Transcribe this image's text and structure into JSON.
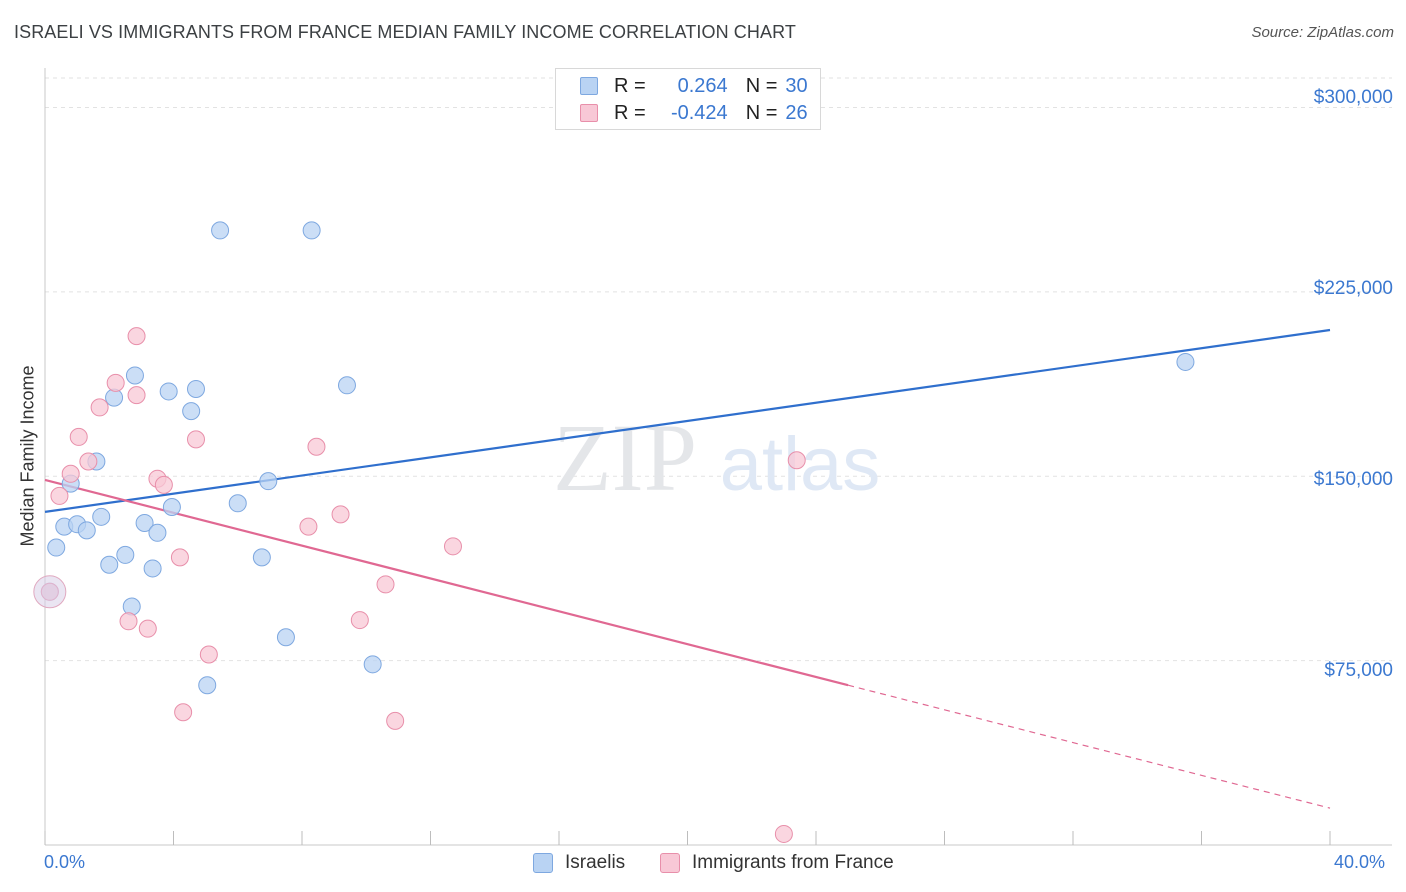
{
  "title": "ISRAELI VS IMMIGRANTS FROM FRANCE MEDIAN FAMILY INCOME CORRELATION CHART",
  "source": "Source: ZipAtlas.com",
  "watermark": {
    "zip": "ZIP",
    "atlas": "atlas"
  },
  "legend": {
    "rows": [
      {
        "r_label": "R =",
        "r_value": "0.264",
        "n_label": "N =",
        "n_value": "30"
      },
      {
        "r_label": "R =",
        "r_value": "-0.424",
        "n_label": "N =",
        "n_value": "26"
      }
    ]
  },
  "bottom_legend": [
    "Israelis",
    "Immigrants from France"
  ],
  "colors": {
    "israelis_fill": "#b9d3f3",
    "israelis_edge": "#7ea8e0",
    "israelis_line": "#2f6fcd",
    "france_fill": "#f8c8d6",
    "france_edge": "#e88faa",
    "france_line": "#e06892",
    "axis_label": "#3b78d0",
    "grid": "#e2e2e2"
  },
  "chart_data": {
    "type": "scatter",
    "title": "ISRAELI VS IMMIGRANTS FROM FRANCE MEDIAN FAMILY INCOME CORRELATION CHART",
    "xlabel": "",
    "ylabel": "Median Family Income",
    "xlim": [
      0,
      40
    ],
    "ylim": [
      0,
      312000
    ],
    "x_tick_labels": [
      "0.0%",
      "40.0%"
    ],
    "y_ticks": [
      75000,
      150000,
      225000,
      300000
    ],
    "y_tick_labels": [
      "$75,000",
      "$150,000",
      "$225,000",
      "$300,000"
    ],
    "grid": true,
    "legend_position": "top-center",
    "series": [
      {
        "name": "Israelis",
        "r": 0.264,
        "n": 30,
        "points": [
          {
            "x": 0.35,
            "y": 121000
          },
          {
            "x": 0.6,
            "y": 129500
          },
          {
            "x": 0.8,
            "y": 147000
          },
          {
            "x": 1.0,
            "y": 130500
          },
          {
            "x": 1.3,
            "y": 128000
          },
          {
            "x": 1.6,
            "y": 156000
          },
          {
            "x": 1.75,
            "y": 133500
          },
          {
            "x": 2.0,
            "y": 114000
          },
          {
            "x": 2.15,
            "y": 182000
          },
          {
            "x": 2.5,
            "y": 118000
          },
          {
            "x": 2.7,
            "y": 97000
          },
          {
            "x": 2.8,
            "y": 191000
          },
          {
            "x": 3.1,
            "y": 131000
          },
          {
            "x": 3.35,
            "y": 112500
          },
          {
            "x": 3.5,
            "y": 127000
          },
          {
            "x": 3.85,
            "y": 184500
          },
          {
            "x": 3.95,
            "y": 137500
          },
          {
            "x": 4.55,
            "y": 176500
          },
          {
            "x": 4.7,
            "y": 185500
          },
          {
            "x": 5.05,
            "y": 65000
          },
          {
            "x": 5.45,
            "y": 250000
          },
          {
            "x": 6.0,
            "y": 139000
          },
          {
            "x": 6.75,
            "y": 117000
          },
          {
            "x": 6.95,
            "y": 148000
          },
          {
            "x": 7.5,
            "y": 84500
          },
          {
            "x": 8.3,
            "y": 250000
          },
          {
            "x": 9.4,
            "y": 187000
          },
          {
            "x": 10.2,
            "y": 73500
          },
          {
            "x": 35.5,
            "y": 196500
          },
          {
            "x": 0.15,
            "y": 103000
          }
        ],
        "trend": {
          "x1": 0,
          "y1": 135500,
          "x2": 40,
          "y2": 209500
        }
      },
      {
        "name": "Immigrants from France",
        "r": -0.424,
        "n": 26,
        "points": [
          {
            "x": 0.15,
            "y": 103000
          },
          {
            "x": 0.45,
            "y": 142000
          },
          {
            "x": 0.8,
            "y": 151000
          },
          {
            "x": 1.05,
            "y": 166000
          },
          {
            "x": 1.35,
            "y": 156000
          },
          {
            "x": 1.7,
            "y": 178000
          },
          {
            "x": 2.2,
            "y": 188000
          },
          {
            "x": 2.6,
            "y": 91000
          },
          {
            "x": 2.85,
            "y": 183000
          },
          {
            "x": 2.85,
            "y": 207000
          },
          {
            "x": 3.2,
            "y": 88000
          },
          {
            "x": 3.5,
            "y": 149000
          },
          {
            "x": 3.7,
            "y": 146500
          },
          {
            "x": 4.2,
            "y": 117000
          },
          {
            "x": 4.3,
            "y": 54000
          },
          {
            "x": 4.7,
            "y": 165000
          },
          {
            "x": 5.1,
            "y": 77500
          },
          {
            "x": 8.2,
            "y": 129500
          },
          {
            "x": 8.45,
            "y": 162000
          },
          {
            "x": 9.2,
            "y": 134500
          },
          {
            "x": 9.8,
            "y": 91500
          },
          {
            "x": 10.6,
            "y": 106000
          },
          {
            "x": 10.9,
            "y": 50500
          },
          {
            "x": 12.7,
            "y": 121500
          },
          {
            "x": 23.0,
            "y": 4500
          },
          {
            "x": 23.4,
            "y": 156500
          }
        ],
        "trend": {
          "x1": 0,
          "y1": 148500,
          "x2": 25,
          "y2": 65000,
          "dashed_to": {
            "x": 40,
            "y": 15000
          }
        }
      }
    ]
  }
}
